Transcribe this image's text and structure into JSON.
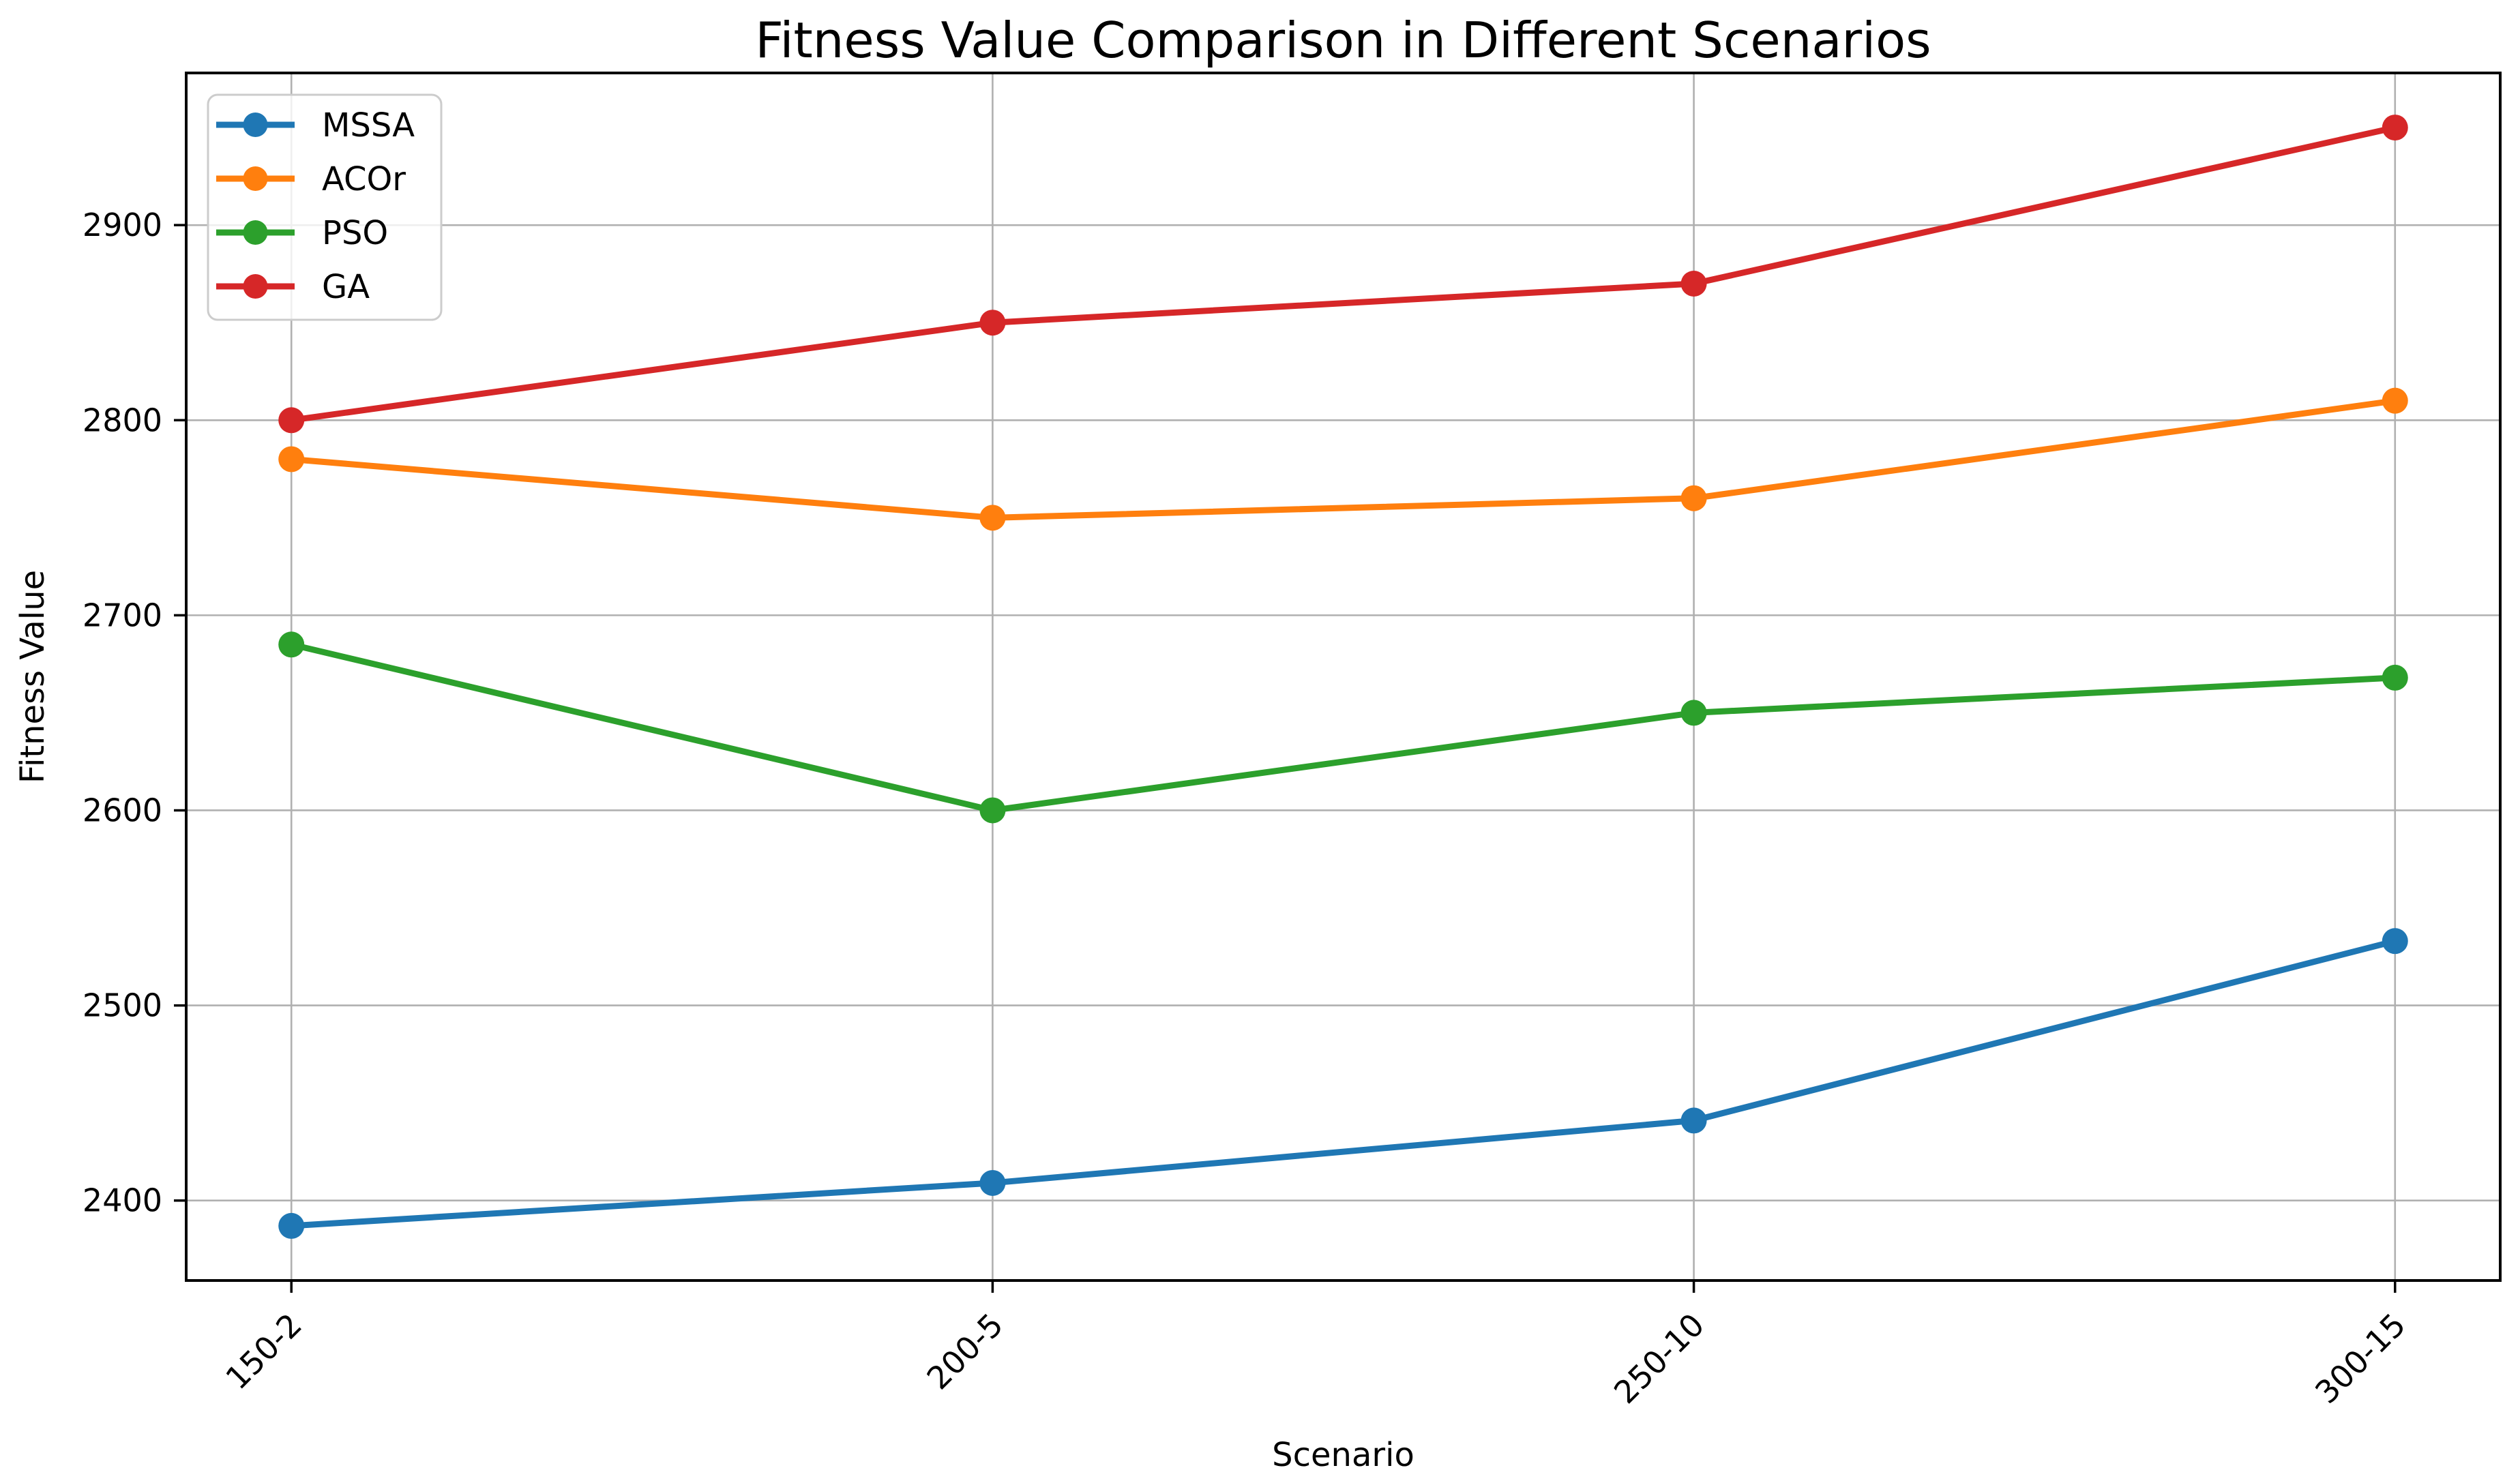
{
  "chart_data": {
    "type": "line",
    "title": "Fitness Value Comparison in Different Scenarios",
    "xlabel": "Scenario",
    "ylabel": "Fitness Value",
    "categories": [
      "150-2",
      "200-5",
      "250-10",
      "300-15"
    ],
    "series": [
      {
        "name": "MSSA",
        "color": "#1f77b4",
        "values": [
          2387,
          2409,
          2441,
          2533
        ]
      },
      {
        "name": "ACOr",
        "color": "#ff7f0e",
        "values": [
          2780,
          2750,
          2760,
          2810
        ]
      },
      {
        "name": "PSO",
        "color": "#2ca02c",
        "values": [
          2685,
          2600,
          2650,
          2668
        ]
      },
      {
        "name": "GA",
        "color": "#d62728",
        "values": [
          2800,
          2850,
          2870,
          2950
        ]
      }
    ],
    "yticks": [
      2400,
      2500,
      2600,
      2700,
      2800,
      2900
    ],
    "ylim": [
      2359,
      2978
    ],
    "grid": true,
    "grid_color": "#b0b0b0",
    "axis_color": "#000000",
    "legend_position": "upper left",
    "legend_border_color": "#cccccc",
    "x_tick_rotation": 45,
    "marker": "o"
  }
}
